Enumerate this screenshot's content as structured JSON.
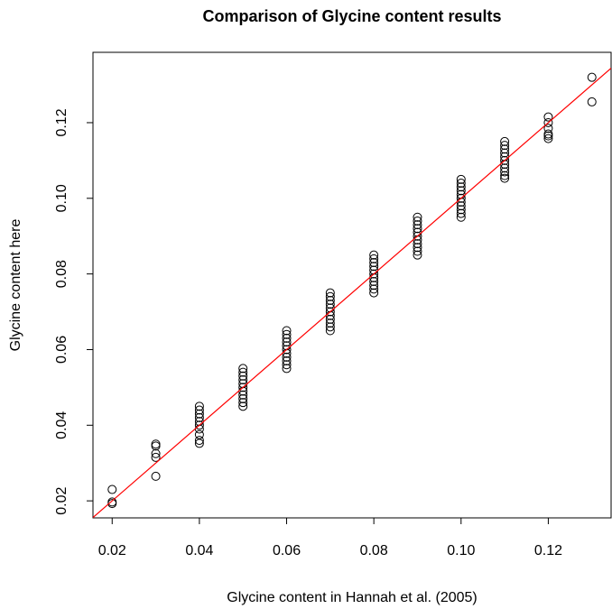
{
  "chart_data": {
    "type": "scatter",
    "title": "Comparison of Glycine content results",
    "x_label": "Glycine content in Hannah et al. (2005)",
    "y_label": "Glycine content here",
    "xlim": [
      0.0156,
      0.1344
    ],
    "ylim": [
      0.0155,
      0.1386
    ],
    "xticks": [
      0.02,
      0.04,
      0.06,
      0.08,
      {
        "value": 0.1,
        "label": "0.10"
      },
      0.12
    ],
    "yticks": [
      0.02,
      0.04,
      0.06,
      0.08,
      {
        "value": 0.1,
        "label": "0.10"
      },
      0.12
    ],
    "abline": {
      "intercept": 0,
      "slope": 1,
      "color": "#ff0000"
    },
    "series": [
      {
        "color": "#000000",
        "x": [
          0.02,
          0.02,
          0.02,
          0.03,
          0.03,
          0.03,
          0.03,
          0.03,
          0.04,
          0.04,
          0.04,
          0.04,
          0.04,
          0.04,
          0.04,
          0.04,
          0.04,
          0.04,
          0.05,
          0.05,
          0.05,
          0.05,
          0.05,
          0.05,
          0.05,
          0.05,
          0.05,
          0.05,
          0.05,
          0.06,
          0.06,
          0.06,
          0.06,
          0.06,
          0.06,
          0.06,
          0.06,
          0.06,
          0.06,
          0.06,
          0.07,
          0.07,
          0.07,
          0.07,
          0.07,
          0.07,
          0.07,
          0.07,
          0.07,
          0.07,
          0.07,
          0.08,
          0.08,
          0.08,
          0.08,
          0.08,
          0.08,
          0.08,
          0.08,
          0.08,
          0.08,
          0.08,
          0.09,
          0.09,
          0.09,
          0.09,
          0.09,
          0.09,
          0.09,
          0.09,
          0.09,
          0.09,
          0.09,
          0.1,
          0.1,
          0.1,
          0.1,
          0.1,
          0.1,
          0.1,
          0.1,
          0.1,
          0.1,
          0.1,
          0.11,
          0.11,
          0.11,
          0.11,
          0.11,
          0.11,
          0.11,
          0.11,
          0.11,
          0.11,
          0.11,
          0.12,
          0.12,
          0.12,
          0.12,
          0.12,
          0.12,
          0.13,
          0.13
        ],
        "values": [
          0.0193,
          0.0197,
          0.023,
          0.0265,
          0.0315,
          0.0325,
          0.0345,
          0.035,
          0.0352,
          0.036,
          0.0375,
          0.039,
          0.04,
          0.041,
          0.042,
          0.043,
          0.044,
          0.045,
          0.045,
          0.046,
          0.047,
          0.048,
          0.049,
          0.05,
          0.051,
          0.052,
          0.053,
          0.054,
          0.055,
          0.055,
          0.056,
          0.057,
          0.058,
          0.059,
          0.06,
          0.061,
          0.062,
          0.063,
          0.064,
          0.065,
          0.065,
          0.066,
          0.067,
          0.068,
          0.069,
          0.07,
          0.071,
          0.072,
          0.073,
          0.074,
          0.075,
          0.075,
          0.076,
          0.077,
          0.078,
          0.079,
          0.08,
          0.081,
          0.082,
          0.083,
          0.084,
          0.085,
          0.085,
          0.086,
          0.087,
          0.088,
          0.089,
          0.09,
          0.091,
          0.092,
          0.093,
          0.094,
          0.095,
          0.095,
          0.096,
          0.097,
          0.098,
          0.099,
          0.1,
          0.101,
          0.102,
          0.103,
          0.104,
          0.105,
          0.1053,
          0.106,
          0.107,
          0.108,
          0.109,
          0.11,
          0.111,
          0.112,
          0.113,
          0.114,
          0.115,
          0.1158,
          0.1165,
          0.117,
          0.1185,
          0.12,
          0.1215,
          0.1255,
          0.132
        ]
      }
    ]
  }
}
